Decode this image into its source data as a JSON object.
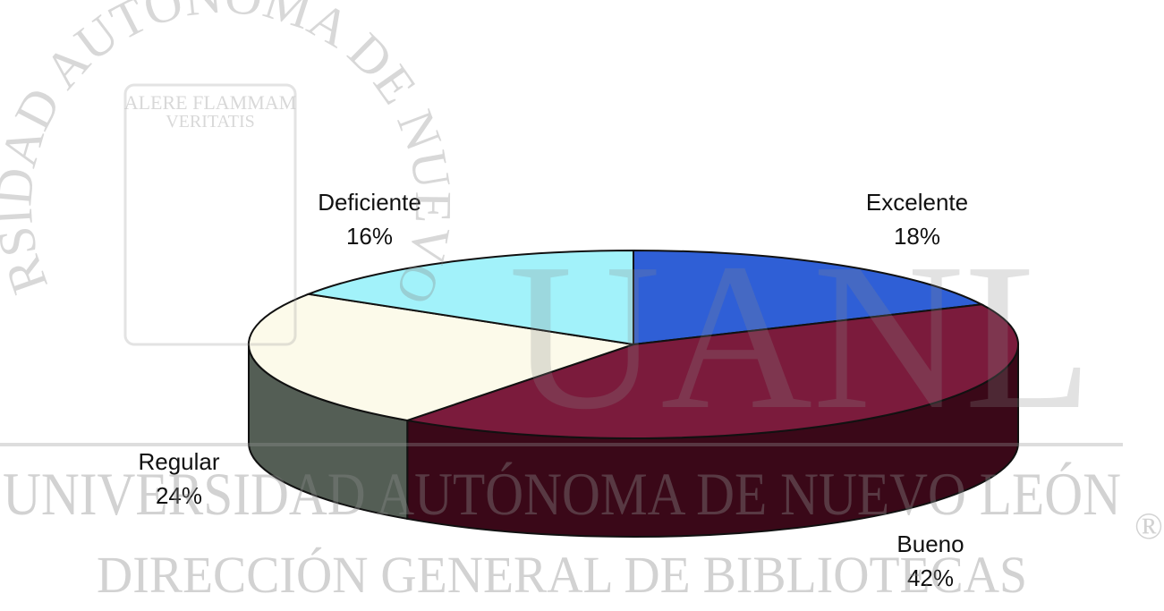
{
  "chart_data": {
    "type": "pie3d",
    "categories": [
      "Excelente",
      "Bueno",
      "Regular",
      "Deficiente"
    ],
    "values": [
      18,
      42,
      24,
      16
    ],
    "value_labels": [
      "18%",
      "42%",
      "24%",
      "16%"
    ],
    "colors": [
      "#2f5fd6",
      "#7b1b3c",
      "#fcfaea",
      "#a2f2fa"
    ],
    "side_colors": [
      "#1c3a8a",
      "#3a0818",
      "#545e55",
      "#5aaab2"
    ]
  },
  "watermark": {
    "arc": "UNIVERSIDAD AUTONOMA DE NUEVO LEON",
    "motto_top": "ALERE FLAMMAM",
    "motto_bottom": "VERITATIS",
    "logo": "UANL",
    "university": "UNIVERSIDAD AUTÓNOMA DE NUEVO LEÓN",
    "library": "DIRECCIÓN GENERAL DE BIBLIOTECAS",
    "registered": "®"
  }
}
